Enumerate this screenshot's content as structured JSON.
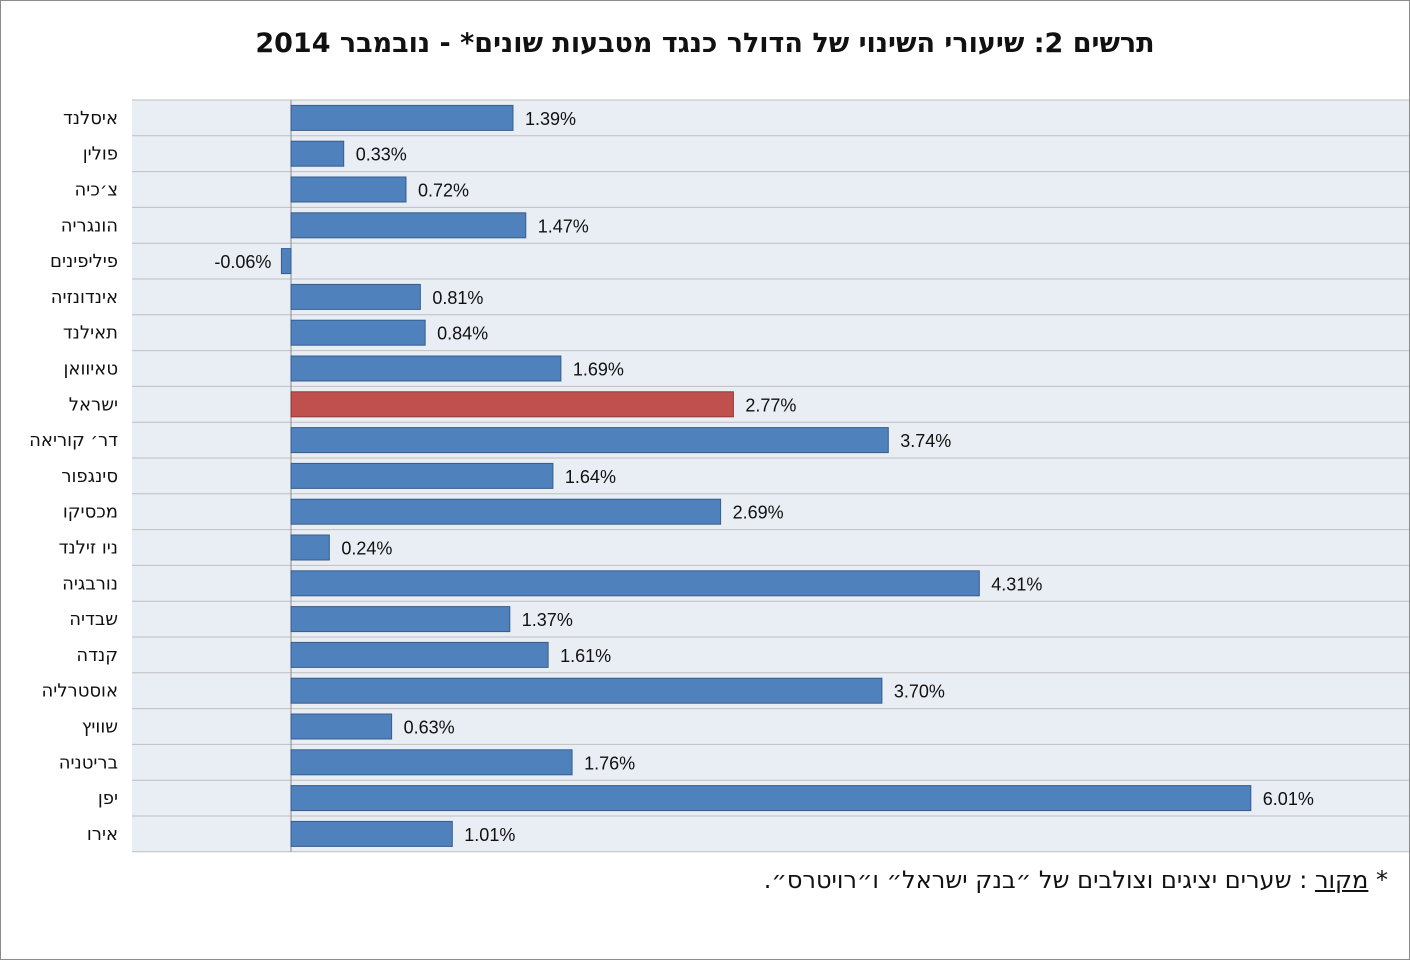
{
  "chart_data": {
    "type": "bar",
    "orientation": "horizontal",
    "title": "תרשים 2: שיעורי השינוי של הדולר כנגד מטבעות שונים* - נובמבר 2014",
    "categories": [
      "איסלנד",
      "פולין",
      "צ׳כיה",
      "הונגריה",
      "פיליפינים",
      "אינדונזיה",
      "תאילנד",
      "טאיוואן",
      "ישראל",
      "דר׳ קוריאה",
      "סינגפור",
      "מכסיקו",
      "ניו זילנד",
      "נורבגיה",
      "שבדיה",
      "קנדה",
      "אוסטרליה",
      "שוויץ",
      "בריטניה",
      "יפן",
      "אירו"
    ],
    "values": [
      1.39,
      0.33,
      0.72,
      1.47,
      -0.06,
      0.81,
      0.84,
      1.69,
      2.77,
      3.74,
      1.64,
      2.69,
      0.24,
      4.31,
      1.37,
      1.61,
      3.7,
      0.63,
      1.76,
      6.01,
      1.01
    ],
    "data_labels": [
      "1.39%",
      "0.33%",
      "0.72%",
      "1.47%",
      "-0.06%",
      "0.81%",
      "0.84%",
      "1.69%",
      "2.77%",
      "3.74%",
      "1.64%",
      "2.69%",
      "0.24%",
      "4.31%",
      "1.37%",
      "1.61%",
      "3.70%",
      "0.63%",
      "1.76%",
      "6.01%",
      "1.01%"
    ],
    "highlight_category": "ישראל",
    "colors": {
      "bar": "#4f81bd",
      "highlight": "#c0504d",
      "band": "#e9edf4",
      "grid": "#bfbfbf"
    },
    "xlim": [
      -1.0,
      6.2
    ],
    "grid": true,
    "legend": "none"
  },
  "footnote": {
    "star": "*",
    "source_label": "מקור",
    "text": ": שערים יציגים וצולבים של ״בנק ישראל״ ו״רויטרס״."
  }
}
